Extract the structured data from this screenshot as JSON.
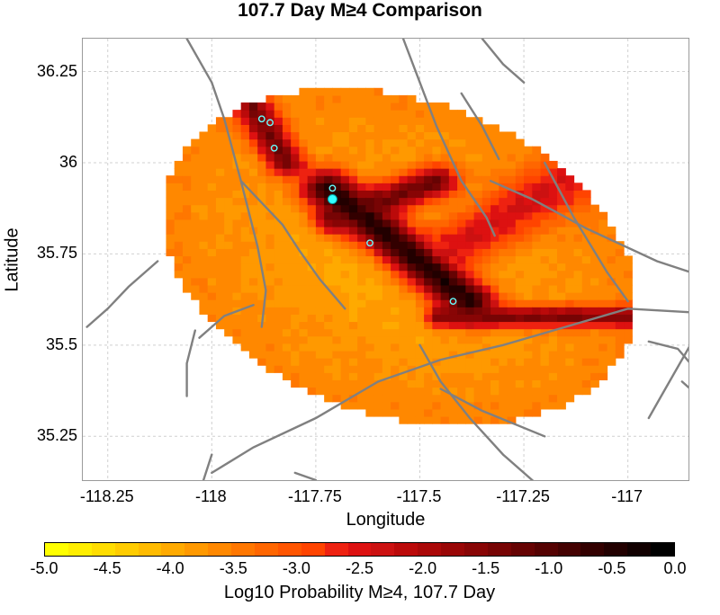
{
  "title": "107.7 Day M≥4 Comparison",
  "axes": {
    "xlabel": "Longitude",
    "ylabel": "Latitude",
    "xlim": [
      -118.31,
      -116.85
    ],
    "ylim": [
      35.125,
      36.34
    ],
    "xticks": [
      {
        "value": -118.25,
        "label": "-118.25"
      },
      {
        "value": -118.0,
        "label": "-118"
      },
      {
        "value": -117.75,
        "label": "-117.75"
      },
      {
        "value": -117.5,
        "label": "-117.5"
      },
      {
        "value": -117.25,
        "label": "-117.25"
      },
      {
        "value": -117.0,
        "label": "-117"
      }
    ],
    "yticks": [
      {
        "value": 36.25,
        "label": "36.25"
      },
      {
        "value": 36.0,
        "label": "36"
      },
      {
        "value": 35.75,
        "label": "35.75"
      },
      {
        "value": 35.5,
        "label": "35.5"
      },
      {
        "value": 35.25,
        "label": "35.25"
      }
    ],
    "grid": true
  },
  "colorbar": {
    "label": "Log10 Probability M≥4, 107.7 Day",
    "min": -5.0,
    "max": 0.0,
    "tick_labels": [
      "-5.0",
      "-4.5",
      "-4.0",
      "-3.5",
      "-3.0",
      "-2.5",
      "-2.0",
      "-1.5",
      "-1.0",
      "-0.5",
      "0.0"
    ],
    "colors": [
      "#ffff00",
      "#ffee00",
      "#ffdd00",
      "#ffcc00",
      "#ffbb00",
      "#ffaa00",
      "#ff9900",
      "#ff8800",
      "#ff7700",
      "#ff6600",
      "#ff5500",
      "#ff4400",
      "#ee2211",
      "#dd1111",
      "#cc1111",
      "#bb0a0a",
      "#aa0808",
      "#990606",
      "#880505",
      "#770404",
      "#660303",
      "#550202",
      "#440101",
      "#330000",
      "#220000",
      "#110000",
      "#000000"
    ]
  },
  "chart_data": {
    "type": "heatmap",
    "title": "107.7 Day M≥4 Comparison",
    "xlabel": "Longitude",
    "ylabel": "Latitude",
    "xlim": [
      -118.31,
      -116.85
    ],
    "ylim": [
      35.125,
      36.34
    ],
    "cell_size_deg": 0.02,
    "value_label": "Log10 Probability M≥4, 107.7 Day",
    "value_range": [
      -5.0,
      0.0
    ],
    "forecast_region": {
      "center": [
        -117.55,
        35.74
      ],
      "extent_note": "elliptical region approx. -118.3 to -116.85 lon, 35.14 to 36.3 lat"
    },
    "model": {
      "background": -3.65,
      "features": [
        {
          "name": "main rupture zone",
          "from": [
            -117.72,
            35.93
          ],
          "to": [
            -117.38,
            35.62
          ],
          "peak": -0.6,
          "width": 0.035
        },
        {
          "name": "secondary zone",
          "from": [
            -117.7,
            35.85
          ],
          "to": [
            -117.46,
            35.95
          ],
          "peak": -1.5,
          "width": 0.03
        },
        {
          "name": "northern cluster",
          "from": [
            -117.9,
            36.15
          ],
          "to": [
            -117.82,
            36.0
          ],
          "peak": -1.5,
          "width": 0.025
        },
        {
          "name": "eastern zone",
          "from": [
            -117.45,
            35.75
          ],
          "to": [
            -117.15,
            35.95
          ],
          "peak": -2.6,
          "width": 0.05
        },
        {
          "name": "southern-east zone",
          "from": [
            -117.45,
            35.58
          ],
          "to": [
            -116.85,
            35.58
          ],
          "peak": -1.6,
          "width": 0.02
        }
      ]
    },
    "events": [
      {
        "lon": -117.88,
        "lat": 36.12,
        "kind": "ring"
      },
      {
        "lon": -117.86,
        "lat": 36.11,
        "kind": "ring"
      },
      {
        "lon": -117.85,
        "lat": 36.04,
        "kind": "ring"
      },
      {
        "lon": -117.71,
        "lat": 35.93,
        "kind": "ring"
      },
      {
        "lon": -117.71,
        "lat": 35.9,
        "kind": "filled"
      },
      {
        "lon": -117.62,
        "lat": 35.78,
        "kind": "ring"
      },
      {
        "lon": -117.42,
        "lat": 35.62,
        "kind": "ring"
      }
    ],
    "faults": [
      [
        [
          -118.06,
          36.34
        ],
        [
          -118.0,
          36.22
        ],
        [
          -117.97,
          36.12
        ],
        [
          -117.93,
          35.95
        ],
        [
          -117.89,
          35.77
        ],
        [
          -117.87,
          35.65
        ],
        [
          -117.88,
          35.55
        ]
      ],
      [
        [
          -117.93,
          35.95
        ],
        [
          -117.88,
          35.89
        ],
        [
          -117.83,
          35.83
        ],
        [
          -117.79,
          35.76
        ],
        [
          -117.74,
          35.68
        ],
        [
          -117.68,
          35.6
        ]
      ],
      [
        [
          -118.3,
          35.55
        ],
        [
          -118.25,
          35.6
        ],
        [
          -118.2,
          35.66
        ],
        [
          -118.13,
          35.73
        ]
      ],
      [
        [
          -118.03,
          35.52
        ],
        [
          -117.97,
          35.58
        ],
        [
          -117.9,
          35.61
        ]
      ],
      [
        [
          -118.04,
          35.54
        ],
        [
          -118.06,
          35.45
        ],
        [
          -118.06,
          35.36
        ]
      ],
      [
        [
          -118.0,
          35.15
        ],
        [
          -117.9,
          35.22
        ],
        [
          -117.75,
          35.3
        ],
        [
          -117.6,
          35.4
        ],
        [
          -117.45,
          35.46
        ],
        [
          -117.3,
          35.5
        ],
        [
          -117.15,
          35.55
        ],
        [
          -117.0,
          35.6
        ],
        [
          -116.85,
          35.59
        ]
      ],
      [
        [
          -118.0,
          35.2
        ],
        [
          -118.02,
          35.13
        ]
      ],
      [
        [
          -117.75,
          35.13
        ],
        [
          -117.8,
          35.15
        ]
      ],
      [
        [
          -117.77,
          35.07
        ],
        [
          -117.65,
          35.05
        ],
        [
          -117.5,
          35.03
        ]
      ],
      [
        [
          -117.5,
          35.5
        ],
        [
          -117.45,
          35.4
        ],
        [
          -117.38,
          35.3
        ],
        [
          -117.3,
          35.2
        ],
        [
          -117.22,
          35.12
        ]
      ],
      [
        [
          -117.45,
          35.38
        ],
        [
          -117.35,
          35.32
        ],
        [
          -117.2,
          35.25
        ]
      ],
      [
        [
          -117.54,
          36.34
        ],
        [
          -117.5,
          36.22
        ],
        [
          -117.46,
          36.1
        ],
        [
          -117.4,
          35.95
        ],
        [
          -117.34,
          35.85
        ],
        [
          -117.32,
          35.8
        ]
      ],
      [
        [
          -117.4,
          36.19
        ],
        [
          -117.35,
          36.1
        ],
        [
          -117.31,
          36.01
        ]
      ],
      [
        [
          -117.35,
          36.34
        ],
        [
          -117.3,
          36.27
        ],
        [
          -117.25,
          36.22
        ]
      ],
      [
        [
          -117.33,
          35.95
        ],
        [
          -117.23,
          35.9
        ],
        [
          -117.1,
          35.82
        ],
        [
          -116.93,
          35.73
        ],
        [
          -116.85,
          35.7
        ]
      ],
      [
        [
          -117.2,
          36.0
        ],
        [
          -117.13,
          35.85
        ],
        [
          -117.05,
          35.7
        ],
        [
          -117.0,
          35.62
        ]
      ],
      [
        [
          -116.95,
          35.51
        ],
        [
          -116.88,
          35.49
        ],
        [
          -116.85,
          35.45
        ]
      ],
      [
        [
          -116.95,
          35.3
        ],
        [
          -116.92,
          35.36
        ],
        [
          -116.85,
          35.5
        ]
      ],
      [
        [
          -116.87,
          35.4
        ],
        [
          -116.85,
          35.38
        ]
      ]
    ]
  }
}
